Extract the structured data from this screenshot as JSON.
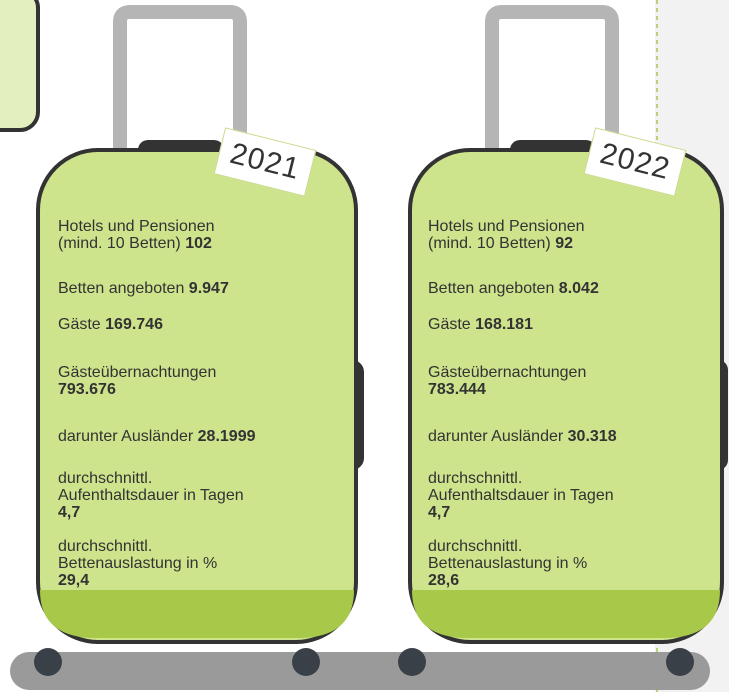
{
  "suitcases": [
    {
      "year": "2021",
      "items": [
        {
          "lines": [
            "Hotels und Pensionen",
            "(mind. 10 Betten)"
          ],
          "value": "102"
        },
        {
          "lines": [
            "Betten angeboten"
          ],
          "value": "9.947"
        },
        {
          "lines": [
            "Gäste"
          ],
          "value": "169.746"
        },
        {
          "lines": [
            "Gästeübernachtungen"
          ],
          "value": "793.676"
        },
        {
          "lines": [
            "darunter Ausländer"
          ],
          "value": "28.1999"
        },
        {
          "lines": [
            "durchschnittl.",
            "Aufenthaltsdauer in Tagen"
          ],
          "value": "4,7"
        },
        {
          "lines": [
            "durchschnittl.",
            "Bettenauslastung in %"
          ],
          "value": "29,4"
        }
      ]
    },
    {
      "year": "2022",
      "items": [
        {
          "lines": [
            "Hotels und Pensionen",
            "(mind. 10 Betten)"
          ],
          "value": "92"
        },
        {
          "lines": [
            "Betten angeboten"
          ],
          "value": "8.042"
        },
        {
          "lines": [
            "Gäste"
          ],
          "value": "168.181"
        },
        {
          "lines": [
            "Gästeübernachtungen"
          ],
          "value": "783.444"
        },
        {
          "lines": [
            "darunter Ausländer"
          ],
          "value": "30.318"
        },
        {
          "lines": [
            "durchschnittl.",
            "Aufenthaltsdauer in Tagen"
          ],
          "value": "4,7"
        },
        {
          "lines": [
            "durchschnittl.",
            "Bettenauslastung in %"
          ],
          "value": "28,6"
        }
      ]
    }
  ]
}
